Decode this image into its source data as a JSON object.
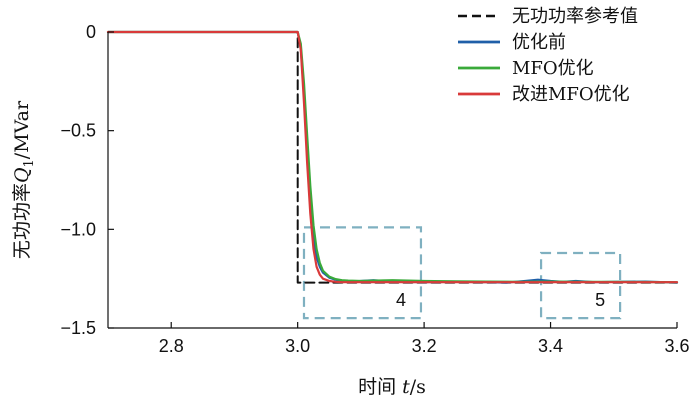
{
  "chart_data": {
    "type": "line",
    "xlabel_prefix": "时间 ",
    "xlabel_var": "t",
    "xlabel_unit": "/s",
    "ylabel_prefix": "无功功率",
    "ylabel_var": "Q",
    "ylabel_sub": "1",
    "ylabel_unit": "/MVar",
    "xlim": [
      2.7,
      3.6
    ],
    "ylim": [
      -1.5,
      0.0
    ],
    "xticks": [
      2.8,
      3.0,
      3.2,
      3.4,
      3.6
    ],
    "xtick_labels": [
      "2.8",
      "3.0",
      "3.2",
      "3.4",
      "3.6"
    ],
    "yticks": [
      0,
      -0.5,
      -1.0,
      -1.5
    ],
    "ytick_labels": [
      "0",
      "−0.5",
      "−1.0",
      "−1.5"
    ],
    "grid": false,
    "legend_position": "top-right",
    "series": [
      {
        "name": "无功功率参考值",
        "color": "#111111",
        "dash": true,
        "x": [
          2.7,
          3.0,
          3.0,
          3.6
        ],
        "y": [
          0.0,
          0.0,
          -1.27,
          -1.27
        ]
      },
      {
        "name": "优化前",
        "color": "#1f5fa8",
        "dash": false,
        "x": [
          2.7,
          3.0,
          3.005,
          3.01,
          3.015,
          3.02,
          3.025,
          3.03,
          3.035,
          3.04,
          3.05,
          3.06,
          3.07,
          3.08,
          3.1,
          3.12,
          3.15,
          3.2,
          3.25,
          3.3,
          3.33,
          3.36,
          3.38,
          3.4,
          3.42,
          3.44,
          3.47,
          3.5,
          3.55,
          3.58,
          3.6
        ],
        "y": [
          0.0,
          0.0,
          -0.08,
          -0.32,
          -0.6,
          -0.86,
          -1.04,
          -1.14,
          -1.19,
          -1.22,
          -1.245,
          -1.255,
          -1.262,
          -1.266,
          -1.262,
          -1.258,
          -1.265,
          -1.268,
          -1.266,
          -1.268,
          -1.27,
          -1.262,
          -1.255,
          -1.262,
          -1.266,
          -1.262,
          -1.268,
          -1.266,
          -1.265,
          -1.268,
          -1.27
        ]
      },
      {
        "name": "MFO优化",
        "color": "#3aaa3a",
        "dash": false,
        "x": [
          2.7,
          3.0,
          3.005,
          3.01,
          3.015,
          3.02,
          3.025,
          3.03,
          3.035,
          3.04,
          3.05,
          3.06,
          3.07,
          3.08,
          3.1,
          3.12,
          3.15,
          3.2,
          3.25,
          3.3,
          3.35,
          3.4,
          3.45,
          3.5,
          3.55,
          3.6
        ],
        "y": [
          0.0,
          0.0,
          -0.06,
          -0.26,
          -0.52,
          -0.78,
          -0.98,
          -1.1,
          -1.17,
          -1.21,
          -1.24,
          -1.252,
          -1.258,
          -1.26,
          -1.262,
          -1.26,
          -1.258,
          -1.262,
          -1.264,
          -1.265,
          -1.266,
          -1.265,
          -1.266,
          -1.266,
          -1.267,
          -1.268
        ]
      },
      {
        "name": "改进MFO优化",
        "color": "#d93a3a",
        "dash": false,
        "x": [
          2.7,
          3.0,
          3.005,
          3.01,
          3.015,
          3.02,
          3.025,
          3.03,
          3.035,
          3.04,
          3.05,
          3.06,
          3.07,
          3.08,
          3.1,
          3.15,
          3.2,
          3.3,
          3.4,
          3.5,
          3.6
        ],
        "y": [
          0.0,
          0.0,
          -0.09,
          -0.36,
          -0.66,
          -0.92,
          -1.1,
          -1.19,
          -1.23,
          -1.25,
          -1.262,
          -1.266,
          -1.268,
          -1.268,
          -1.268,
          -1.268,
          -1.268,
          -1.268,
          -1.268,
          -1.268,
          -1.268
        ]
      }
    ],
    "zoom_boxes": [
      {
        "label": "4",
        "x": [
          3.01,
          3.195
        ],
        "y": [
          -1.45,
          -0.99
        ],
        "color": "#7fb0c0"
      },
      {
        "label": "5",
        "x": [
          3.385,
          3.51
        ],
        "y": [
          -1.45,
          -1.12
        ],
        "color": "#7fb0c0"
      }
    ]
  }
}
